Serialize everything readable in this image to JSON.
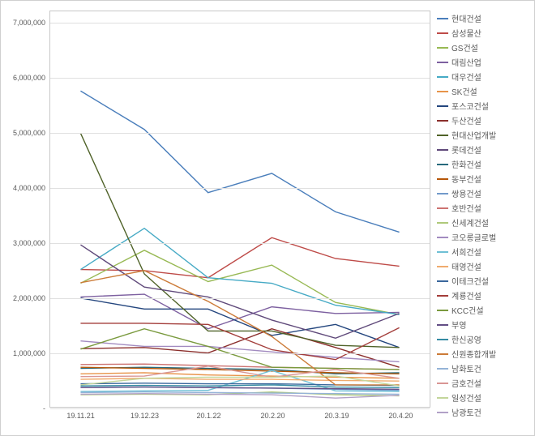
{
  "chart": {
    "type": "line",
    "background_color": "#ffffff",
    "border_color": "#d0d0d0",
    "grid_color": "#e0e0e0",
    "tick_font_size": 9,
    "tick_font_color": "#595959",
    "legend_font_size": 10,
    "legend_font_color": "#595959",
    "line_width": 1.4,
    "ylim": [
      0,
      7200000
    ],
    "ytick_step": 1000000,
    "ytick_labels": [
      "-",
      "1,000,000",
      "2,000,000",
      "3,000,000",
      "4,000,000",
      "5,000,000",
      "6,000,000",
      "7,000,000"
    ],
    "x_labels": [
      "19.11.21",
      "19.12.23",
      "20.1.22",
      "20.2.20",
      "20.3.19",
      "20.4.20"
    ],
    "series": [
      {
        "name": "현대건설",
        "color": "#4a7ebb",
        "values": [
          5750000,
          5050000,
          3900000,
          4250000,
          3550000,
          3180000
        ]
      },
      {
        "name": "삼성물산",
        "color": "#be4b48",
        "values": [
          2500000,
          2480000,
          2350000,
          3080000,
          2700000,
          2560000
        ]
      },
      {
        "name": "GS건설",
        "color": "#98b954",
        "values": [
          2250000,
          2850000,
          2280000,
          2580000,
          1900000,
          1680000
        ]
      },
      {
        "name": "대림산업",
        "color": "#7d60a0",
        "values": [
          2000000,
          2050000,
          1420000,
          1820000,
          1700000,
          1720000
        ]
      },
      {
        "name": "대우건설",
        "color": "#46aac5",
        "values": [
          2500000,
          3250000,
          2350000,
          2250000,
          1850000,
          1680000
        ]
      },
      {
        "name": "SK건설",
        "color": "#e8944a",
        "values": [
          600000,
          620000,
          580000,
          560000,
          540000,
          520000
        ]
      },
      {
        "name": "포스코건설",
        "color": "#24467e",
        "values": [
          1980000,
          1780000,
          1780000,
          1300000,
          1500000,
          1080000
        ]
      },
      {
        "name": "두산건설",
        "color": "#8b2f2c",
        "values": [
          1060000,
          1080000,
          980000,
          1420000,
          1080000,
          720000
        ]
      },
      {
        "name": "현대산업개발",
        "color": "#4f6228",
        "values": [
          4980000,
          2420000,
          1380000,
          1380000,
          1120000,
          1080000
        ]
      },
      {
        "name": "롯데건설",
        "color": "#5f497a",
        "values": [
          2950000,
          2180000,
          2000000,
          1580000,
          1250000,
          1700000
        ]
      },
      {
        "name": "한화건설",
        "color": "#276a7c",
        "values": [
          700000,
          720000,
          700000,
          680000,
          600000,
          620000
        ]
      },
      {
        "name": "동부건설",
        "color": "#b65708",
        "values": [
          720000,
          700000,
          680000,
          650000,
          620000,
          600000
        ]
      },
      {
        "name": "쌍용건설",
        "color": "#729aca",
        "values": [
          350000,
          360000,
          350000,
          340000,
          320000,
          300000
        ]
      },
      {
        "name": "호반건설",
        "color": "#cd7371",
        "values": [
          770000,
          780000,
          750000,
          720000,
          700000,
          680000
        ]
      },
      {
        "name": "신세계건설",
        "color": "#afc97a",
        "values": [
          220000,
          230000,
          220000,
          270000,
          220000,
          200000
        ]
      },
      {
        "name": "코오롱글로벌",
        "color": "#a28bc0",
        "values": [
          1200000,
          1100000,
          1100000,
          1000000,
          900000,
          820000
        ]
      },
      {
        "name": "서희건설",
        "color": "#6fc0d5",
        "values": [
          280000,
          290000,
          300000,
          660000,
          290000,
          280000
        ]
      },
      {
        "name": "태영건설",
        "color": "#f0ab6e",
        "values": [
          500000,
          520000,
          500000,
          500000,
          480000,
          470000
        ]
      },
      {
        "name": "이테크건설",
        "color": "#3a679c",
        "values": [
          420000,
          430000,
          420000,
          420000,
          400000,
          390000
        ]
      },
      {
        "name": "계룡건설",
        "color": "#a33d3a",
        "values": [
          1520000,
          1520000,
          1500000,
          1040000,
          860000,
          1440000
        ]
      },
      {
        "name": "KCC건설",
        "color": "#7a9a3e",
        "values": [
          1050000,
          1420000,
          1100000,
          720000,
          700000,
          680000
        ]
      },
      {
        "name": "부영",
        "color": "#634e85",
        "values": [
          350000,
          360000,
          350000,
          340000,
          330000,
          320000
        ]
      },
      {
        "name": "한신공영",
        "color": "#358ba3",
        "values": [
          380000,
          390000,
          380000,
          400000,
          360000,
          350000
        ]
      },
      {
        "name": "신원종합개발",
        "color": "#cc7b38",
        "values": [
          2260000,
          2480000,
          1920000,
          1280000,
          400000,
          400000
        ]
      },
      {
        "name": "남화토건",
        "color": "#95b3d7",
        "values": [
          260000,
          270000,
          260000,
          250000,
          240000,
          230000
        ]
      },
      {
        "name": "금호건설",
        "color": "#d99694",
        "values": [
          550000,
          560000,
          740000,
          540000,
          680000,
          520000
        ]
      },
      {
        "name": "일성건설",
        "color": "#c3d69b",
        "values": [
          400000,
          520000,
          540000,
          540000,
          560000,
          380000
        ]
      },
      {
        "name": "남광토건",
        "color": "#b2a1c7",
        "values": [
          230000,
          240000,
          230000,
          220000,
          160000,
          210000
        ]
      }
    ]
  }
}
